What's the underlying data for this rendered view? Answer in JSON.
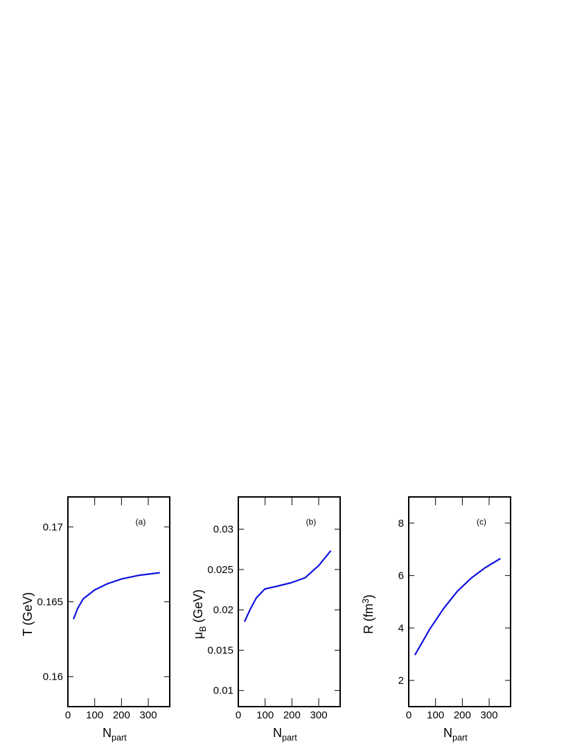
{
  "chart_data": [
    {
      "type": "line",
      "panel_label": "(a)",
      "x_label": [
        {
          "text": "N"
        },
        {
          "text": "part",
          "shift": "sub"
        }
      ],
      "y_label": [
        {
          "text": "T (GeV)"
        }
      ],
      "x": [
        21,
        36,
        57,
        100,
        147,
        201,
        263,
        343
      ],
      "values": [
        0.16384,
        0.16454,
        0.16519,
        0.16579,
        0.1662,
        0.16653,
        0.16676,
        0.16694
      ],
      "color": "#1010e0",
      "xlim": [
        0,
        380
      ],
      "xticks": [
        0,
        100,
        200,
        300
      ],
      "ylim": [
        0.158,
        0.172
      ],
      "yticks": [
        0.16,
        0.165,
        0.17
      ]
    },
    {
      "type": "line",
      "panel_label": "(b)",
      "x_label": [
        {
          "text": "N"
        },
        {
          "text": "part",
          "shift": "sub"
        }
      ],
      "y_label": [
        {
          "text": "μ"
        },
        {
          "text": "B",
          "shift": "sub"
        },
        {
          "text": " (GeV)"
        }
      ],
      "x": [
        23,
        45,
        67,
        99,
        145,
        197,
        249,
        301,
        345
      ],
      "values": [
        0.01853,
        0.0201,
        0.02147,
        0.02259,
        0.02293,
        0.02336,
        0.02397,
        0.02552,
        0.02733
      ],
      "color": "#1010e0",
      "xlim": [
        0,
        380
      ],
      "xticks": [
        0,
        100,
        200,
        300
      ],
      "ylim": [
        0.008,
        0.034
      ],
      "yticks": [
        0.01,
        0.015,
        0.02,
        0.025,
        0.03
      ]
    },
    {
      "type": "line",
      "panel_label": "(c)",
      "x_label": [
        {
          "text": "N"
        },
        {
          "text": "part",
          "shift": "sub"
        }
      ],
      "y_label": [
        {
          "text": "R (fm"
        },
        {
          "text": "3",
          "shift": "sup"
        },
        {
          "text": ")"
        }
      ],
      "x": [
        23,
        78,
        130,
        181,
        233,
        285,
        342
      ],
      "values": [
        2.97,
        3.95,
        4.74,
        5.4,
        5.9,
        6.3,
        6.65
      ],
      "color": "#1010e0",
      "xlim": [
        0,
        380
      ],
      "xticks": [
        0,
        100,
        200,
        300
      ],
      "ylim": [
        1,
        9
      ],
      "yticks": [
        2,
        4,
        6,
        8
      ]
    }
  ]
}
